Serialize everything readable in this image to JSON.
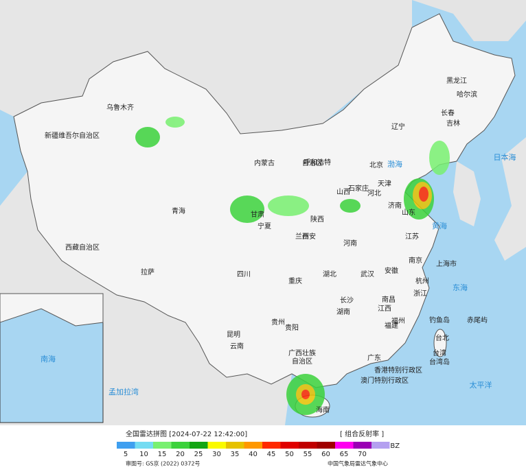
{
  "map": {
    "labels": [
      "乌鲁木齐",
      "新疆维吾尔自治区",
      "西藏自治区",
      "拉萨",
      "青海",
      "甘肃",
      "兰州",
      "内蒙古",
      "自治区",
      "呼和浩特",
      "宁夏",
      "陕西",
      "西安",
      "山西",
      "河北",
      "石家庄",
      "北京",
      "天津",
      "山东",
      "济南",
      "河南",
      "四川",
      "重庆",
      "湖北",
      "武汉",
      "湖南",
      "长沙",
      "贵州",
      "贵阳",
      "云南",
      "昆明",
      "广西壮族",
      "自治区",
      "广东",
      "海南",
      "江西",
      "南昌",
      "福建",
      "福州",
      "浙江",
      "杭州",
      "上海市",
      "江苏",
      "南京",
      "安徽",
      "辽宁",
      "吉林",
      "长春",
      "黑龙江",
      "哈尔滨",
      "台湾",
      "台北",
      "香港特别行政区",
      "澳门特别行政区",
      "东海",
      "黄海",
      "渤海",
      "日本海",
      "太平洋",
      "南海",
      "钓鱼岛",
      "赤尾屿",
      "台湾岛",
      "孟加拉湾"
    ]
  },
  "legend": {
    "title": "全国雷达拼图 [2024-07-22 12:42:00]",
    "product": "[ 组合反射率 ]",
    "unit": "dBZ",
    "values": [
      5,
      10,
      15,
      20,
      25,
      30,
      35,
      40,
      45,
      50,
      55,
      60,
      65,
      70
    ],
    "colors": [
      "#3f9ff0",
      "#74dcf2",
      "#78f070",
      "#3cd23c",
      "#13a513",
      "#fafa00",
      "#e6c200",
      "#ff9800",
      "#ff2a00",
      "#e00000",
      "#c00000",
      "#a00000",
      "#ff00f0",
      "#9a00b4",
      "#b4a0f0"
    ]
  },
  "footer": {
    "approval": "审图号: GS京 (2022) 0372号",
    "source": "中国气象局雷达气象中心"
  }
}
